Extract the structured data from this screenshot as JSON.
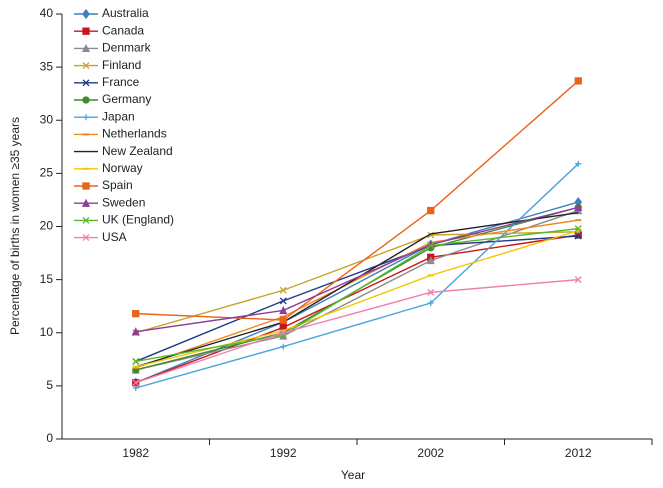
{
  "chart_data": {
    "type": "line",
    "x_label": "Year",
    "y_label": "Percentage of births in women ≥35 years",
    "categories": [
      "1982",
      "1992",
      "2002",
      "2012"
    ],
    "ylim": [
      0,
      40
    ],
    "yticks": [
      0,
      5,
      10,
      15,
      20,
      25,
      30,
      35,
      40
    ],
    "legend": "top-left",
    "series": [
      {
        "name": "Australia",
        "color": "#3f7fc0",
        "marker": "diamond",
        "values": [
          5.3,
          11.0,
          18.3,
          22.3
        ]
      },
      {
        "name": "Canada",
        "color": "#c8161d",
        "marker": "square",
        "values": [
          5.3,
          10.5,
          17.1,
          19.2
        ]
      },
      {
        "name": "Denmark",
        "color": "#8c8c8c",
        "marker": "triangle",
        "values": [
          6.5,
          9.7,
          16.8,
          21.5
        ]
      },
      {
        "name": "Finland",
        "color": "#c9a227",
        "marker": "x",
        "values": [
          10.0,
          14.0,
          19.2,
          19.5
        ]
      },
      {
        "name": "France",
        "color": "#1f3a8a",
        "marker": "x",
        "values": [
          7.3,
          13.0,
          18.2,
          19.1
        ]
      },
      {
        "name": "Germany",
        "color": "#3d8c2f",
        "marker": "circle",
        "values": [
          6.5,
          10.0,
          18.0,
          21.8
        ]
      },
      {
        "name": "Japan",
        "color": "#4aa3df",
        "marker": "plus",
        "values": [
          4.8,
          8.7,
          12.8,
          25.9
        ]
      },
      {
        "name": "Netherlands",
        "color": "#f08a24",
        "marker": "dash",
        "values": [
          6.7,
          11.5,
          18.5,
          20.6
        ]
      },
      {
        "name": "New Zealand",
        "color": "#222222",
        "marker": "none",
        "values": [
          6.8,
          11.0,
          19.3,
          21.3
        ]
      },
      {
        "name": "Norway",
        "color": "#f5c400",
        "marker": "dash",
        "values": [
          6.8,
          10.2,
          15.4,
          19.6
        ]
      },
      {
        "name": "Spain",
        "color": "#e8641b",
        "marker": "square",
        "values": [
          11.8,
          11.2,
          21.5,
          33.7
        ]
      },
      {
        "name": "Sweden",
        "color": "#8e3b9c",
        "marker": "triangle",
        "values": [
          10.1,
          12.1,
          18.3,
          21.8
        ]
      },
      {
        "name": "UK (England)",
        "color": "#58b82e",
        "marker": "x",
        "values": [
          7.3,
          9.8,
          18.2,
          19.8
        ]
      },
      {
        "name": "USA",
        "color": "#f07fb0",
        "marker": "x",
        "values": [
          5.3,
          10.0,
          13.8,
          15.0
        ]
      }
    ]
  }
}
